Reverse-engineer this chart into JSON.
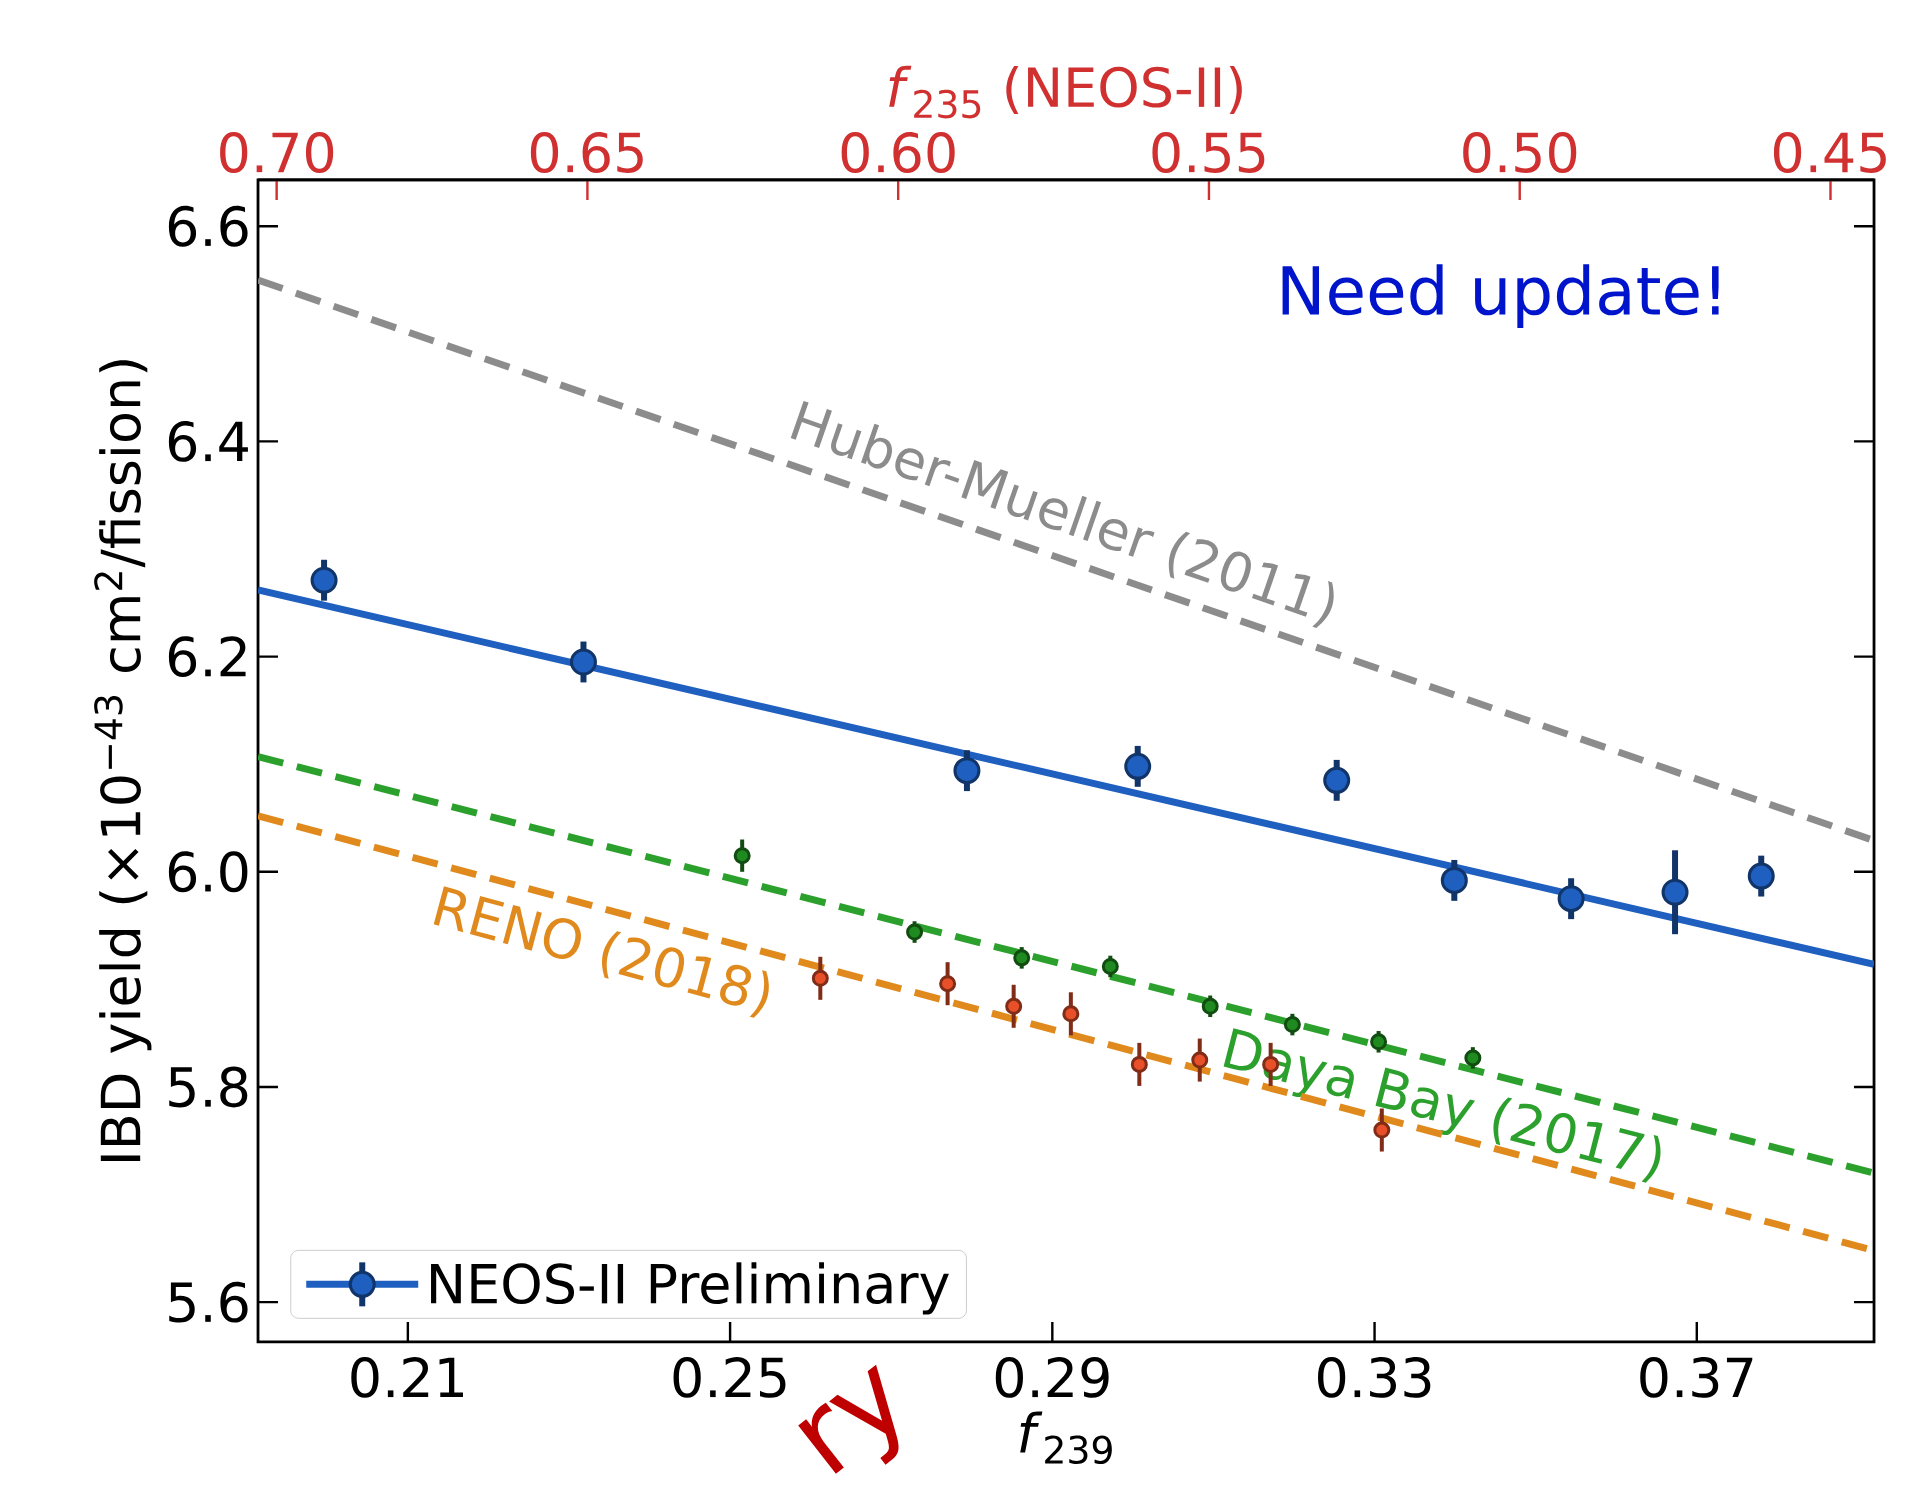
{
  "chart_data": {
    "type": "scatter",
    "xlabel": "*f*$_{239}$",
    "ylabel": "IBD yield (×10$^{−43}$ cm$^{2}$/fission)",
    "x2label": "*f*$_{235}$ (NEOS-II)",
    "xlim": [
      0.1914,
      0.392
    ],
    "ylim": [
      5.563,
      6.643
    ],
    "x2lim": [
      0.703,
      0.443
    ],
    "xticks": [
      0.21,
      0.25,
      0.29,
      0.33,
      0.37
    ],
    "yticks": [
      5.6,
      5.8,
      {
        "value": 6.0,
        "label": "6.0"
      },
      6.2,
      6.4,
      6.6
    ],
    "x2ticks": [
      {
        "value": 0.7,
        "label": "0.70"
      },
      {
        "value": 0.65,
        "label": "0.65"
      },
      {
        "value": 0.6,
        "label": "0.60"
      },
      {
        "value": 0.55,
        "label": "0.55"
      },
      {
        "value": 0.5,
        "label": "0.50"
      },
      {
        "value": 0.45,
        "label": "0.45"
      }
    ],
    "legend": "bottom left",
    "marker": "circle",
    "annotations": [
      "Need update!",
      "ry"
    ],
    "series": [
      {
        "type": "line",
        "name": "Huber-Mueller (2011)",
        "color": "#8c8c8c",
        "line_style": "dashed",
        "marker": "none",
        "x": [
          0.1914,
          0.392
        ],
        "values": [
          6.55,
          6.029
        ]
      },
      {
        "type": "line",
        "name": "Daya Bay (2017)",
        "color": "#2ca02c",
        "line_style": "dashed",
        "marker": "none",
        "x": [
          0.1914,
          0.392
        ],
        "values": [
          6.107,
          5.72
        ]
      },
      {
        "type": "line",
        "name": "RENO (2018)",
        "color": "#e08a1e",
        "line_style": "dashed",
        "marker": "none",
        "x": [
          0.1914,
          0.392
        ],
        "values": [
          6.052,
          5.648
        ]
      },
      {
        "color": "#1f8a1f",
        "x": [
          0.2515,
          0.2729,
          0.2862,
          0.2972,
          0.3096,
          0.3198,
          0.3305,
          0.3422
        ],
        "values": [
          6.015,
          5.944,
          5.92,
          5.912,
          5.875,
          5.858,
          5.842,
          5.827
        ],
        "errors": [
          0.015,
          0.01,
          0.01,
          0.01,
          0.01,
          0.01,
          0.01,
          0.01
        ]
      },
      {
        "color": "#e8502a",
        "x": [
          0.2612,
          0.277,
          0.2852,
          0.2923,
          0.3008,
          0.3083,
          0.3171,
          0.3309
        ],
        "values": [
          5.901,
          5.896,
          5.875,
          5.868,
          5.821,
          5.825,
          5.821,
          5.76
        ],
        "errors": [
          0.02,
          0.02,
          0.02,
          0.02,
          0.02,
          0.02,
          0.02,
          0.02
        ]
      },
      {
        "type": "line",
        "color": "#1f5fbf",
        "line_style": "solid",
        "marker": "none",
        "x": [
          0.1914,
          0.392
        ],
        "values": [
          6.262,
          5.914
        ]
      },
      {
        "name": "NEOS-II Preliminary",
        "color": "#1f5fbf",
        "x": [
          0.1996,
          0.2318,
          0.2794,
          0.3006,
          0.3253,
          0.3399,
          0.3544,
          0.3673,
          0.378
        ],
        "values": [
          6.271,
          6.195,
          6.094,
          6.098,
          6.085,
          5.992,
          5.975,
          5.981,
          5.996
        ],
        "errors": [
          0.019,
          0.019,
          0.019,
          0.019,
          0.019,
          0.019,
          0.019,
          0.039,
          0.019
        ]
      }
    ]
  }
}
